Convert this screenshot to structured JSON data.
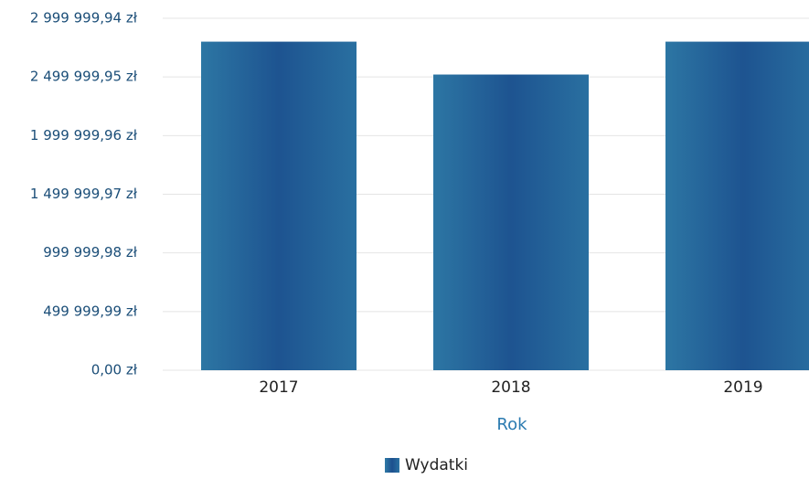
{
  "chart_data": {
    "type": "bar",
    "categories": [
      "2017",
      "2018",
      "2019"
    ],
    "x_label": "Rok",
    "series": [
      {
        "name": "Wydatki",
        "color": "#23669a",
        "values": [
          2800000,
          2520000,
          2800000
        ]
      }
    ],
    "ylim": [
      0,
      2999999.94
    ],
    "yticks": [
      {
        "value": 0,
        "label": "0,00 zł"
      },
      {
        "value": 499999.99,
        "label": "499 999,99 zł"
      },
      {
        "value": 999999.98,
        "label": "999 999,98 zł"
      },
      {
        "value": 1499999.97,
        "label": "1 499 999,97 zł"
      },
      {
        "value": 1999999.96,
        "label": "1 999 999,96 zł"
      },
      {
        "value": 2499999.95,
        "label": "2 499 999,95 zł"
      },
      {
        "value": 2999999.94,
        "label": "2 999 999,94 zł"
      }
    ],
    "grid": true
  }
}
